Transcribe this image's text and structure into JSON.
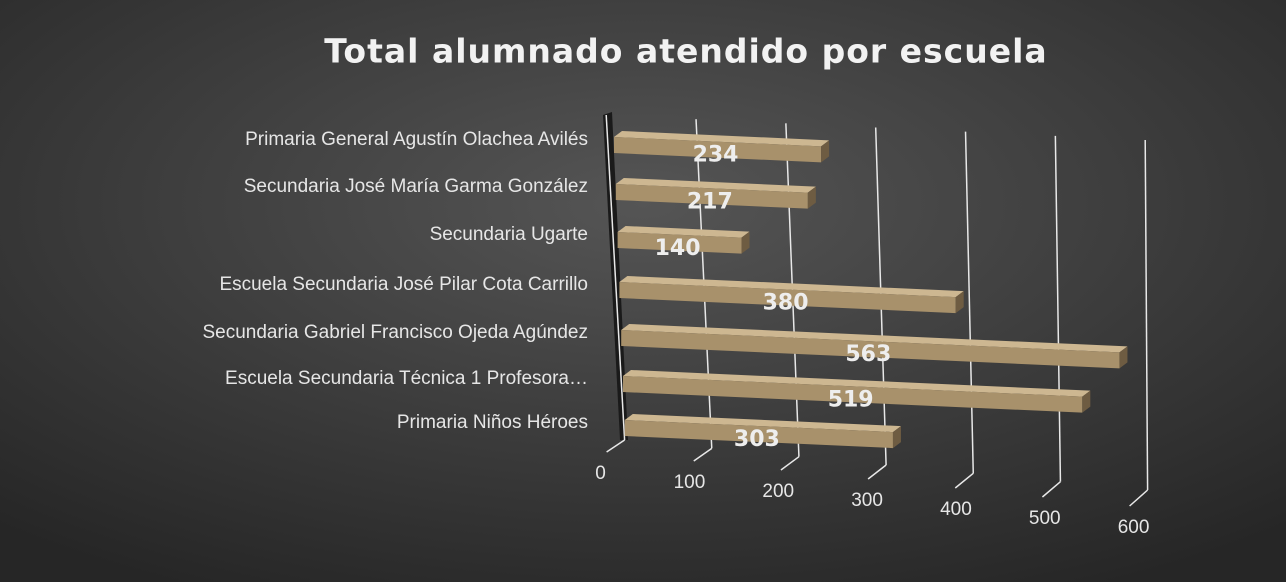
{
  "chart_data": {
    "type": "bar3d_horizontal",
    "title": "Total alumnado atendido por escuela",
    "categories": [
      "Primaria General Agustín Olachea Avilés",
      "Secundaria José María Garma González",
      "Secundaria Ugarte",
      "Escuela Secundaria José Pilar Cota Carrillo",
      "Secundaria Gabriel Francisco Ojeda Agúndez",
      "Escuela Secundaria Técnica 1 Profesora…",
      "Primaria Niños Héroes"
    ],
    "values": [
      234,
      217,
      140,
      380,
      563,
      519,
      303
    ],
    "color": "#a8916b",
    "xlim": [
      0,
      600
    ],
    "xticks": [
      0,
      100,
      200,
      300,
      400,
      500,
      600
    ],
    "grid": true
  }
}
